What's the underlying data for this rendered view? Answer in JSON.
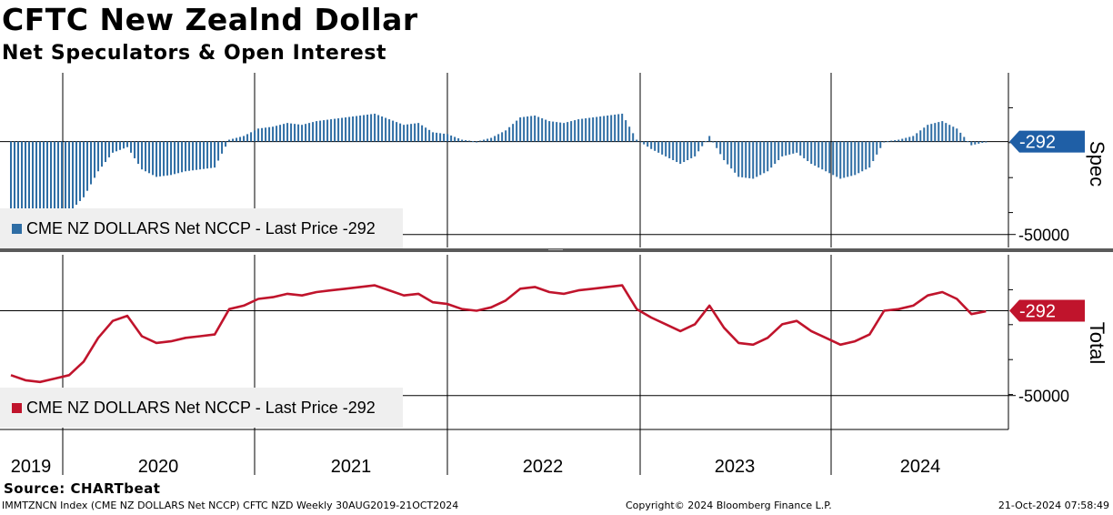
{
  "header": {
    "title": "CFTC New Zealnd Dollar",
    "subtitle": "Net Speculators & Open Interest"
  },
  "source": "Source: CHARTbeat",
  "footer": {
    "left": "IMMTZNCN Index (CME NZ DOLLARS Net NCCP) CFTC NZD  Weekly 30AUG2019-21OCT2024",
    "middle": "Copyright© 2024 Bloomberg Finance L.P.",
    "right": "21-Oct-2024 07:58:49"
  },
  "colors": {
    "spec_bar": "#2e6da4",
    "total_line": "#c0142c",
    "spec_tag": "#1f5fa6",
    "total_tag": "#c0142c",
    "legend_bg": "#efefef",
    "divider": "#5a5a5a"
  },
  "chart_data": [
    {
      "type": "bar",
      "panel": "Spec",
      "legend": "CME NZ DOLLARS Net NCCP - Last Price -292",
      "last_value_label": "-292",
      "yticks": [
        -50000
      ],
      "ytick_labels": [
        "-50000"
      ],
      "ylim": [
        -57000,
        37000
      ],
      "x_labels": [
        "2019",
        "2020",
        "2021",
        "2022",
        "2023",
        "2024"
      ],
      "x": [
        "2019-08-30",
        "2019-09-27",
        "2019-10-25",
        "2019-11-22",
        "2019-12-20",
        "2020-01-17",
        "2020-02-14",
        "2020-03-13",
        "2020-04-10",
        "2020-05-08",
        "2020-06-05",
        "2020-07-03",
        "2020-07-31",
        "2020-08-28",
        "2020-09-25",
        "2020-10-23",
        "2020-11-20",
        "2020-12-18",
        "2021-01-15",
        "2021-02-12",
        "2021-03-12",
        "2021-04-09",
        "2021-05-07",
        "2021-06-04",
        "2021-07-02",
        "2021-07-30",
        "2021-08-27",
        "2021-09-24",
        "2021-10-22",
        "2021-11-19",
        "2021-12-17",
        "2022-01-14",
        "2022-02-11",
        "2022-03-11",
        "2022-04-08",
        "2022-05-06",
        "2022-06-03",
        "2022-07-01",
        "2022-07-29",
        "2022-08-26",
        "2022-09-23",
        "2022-10-21",
        "2022-11-18",
        "2022-12-16",
        "2023-01-13",
        "2023-02-10",
        "2023-03-10",
        "2023-04-07",
        "2023-05-05",
        "2023-06-02",
        "2023-06-30",
        "2023-07-28",
        "2023-08-25",
        "2023-09-22",
        "2023-10-20",
        "2023-11-17",
        "2023-12-15",
        "2024-01-12",
        "2024-02-09",
        "2024-03-08",
        "2024-04-05",
        "2024-05-03",
        "2024-05-31",
        "2024-06-28",
        "2024-07-26",
        "2024-08-23",
        "2024-09-20",
        "2024-10-18"
      ],
      "values": [
        -38000,
        -41000,
        -42000,
        -40000,
        -38000,
        -30000,
        -16000,
        -6000,
        -3000,
        -15000,
        -19000,
        -18000,
        -16000,
        -15000,
        -14000,
        1000,
        3000,
        7000,
        8000,
        10000,
        9000,
        11000,
        12000,
        13000,
        14000,
        15000,
        12000,
        9000,
        10000,
        5000,
        4000,
        1000,
        0,
        2000,
        6000,
        13000,
        14000,
        11000,
        10000,
        12000,
        13000,
        14000,
        15000,
        1000,
        -4000,
        -8000,
        -12000,
        -8000,
        3000,
        -10000,
        -19000,
        -20000,
        -16000,
        -8000,
        -6000,
        -12000,
        -16000,
        -20000,
        -18000,
        -14000,
        0,
        1000,
        3000,
        9000,
        11000,
        7000,
        -2000,
        -292
      ],
      "bar_color": "#2e6da4"
    },
    {
      "type": "line",
      "panel": "Total",
      "legend": "CME NZ DOLLARS Net NCCP - Last Price -292",
      "last_value_label": "-292",
      "yticks": [
        -50000
      ],
      "ytick_labels": [
        "-50000"
      ],
      "ylim": [
        -70000,
        33000
      ],
      "x_labels": [
        "2019",
        "2020",
        "2021",
        "2022",
        "2023",
        "2024"
      ],
      "x": [
        "2019-08-30",
        "2019-09-27",
        "2019-10-25",
        "2019-11-22",
        "2019-12-20",
        "2020-01-17",
        "2020-02-14",
        "2020-03-13",
        "2020-04-10",
        "2020-05-08",
        "2020-06-05",
        "2020-07-03",
        "2020-07-31",
        "2020-08-28",
        "2020-09-25",
        "2020-10-23",
        "2020-11-20",
        "2020-12-18",
        "2021-01-15",
        "2021-02-12",
        "2021-03-12",
        "2021-04-09",
        "2021-05-07",
        "2021-06-04",
        "2021-07-02",
        "2021-07-30",
        "2021-08-27",
        "2021-09-24",
        "2021-10-22",
        "2021-11-19",
        "2021-12-17",
        "2022-01-14",
        "2022-02-11",
        "2022-03-11",
        "2022-04-08",
        "2022-05-06",
        "2022-06-03",
        "2022-07-01",
        "2022-07-29",
        "2022-08-26",
        "2022-09-23",
        "2022-10-21",
        "2022-11-18",
        "2022-12-16",
        "2023-01-13",
        "2023-02-10",
        "2023-03-10",
        "2023-04-07",
        "2023-05-05",
        "2023-06-02",
        "2023-06-30",
        "2023-07-28",
        "2023-08-25",
        "2023-09-22",
        "2023-10-20",
        "2023-11-17",
        "2023-12-15",
        "2024-01-12",
        "2024-02-09",
        "2024-03-08",
        "2024-04-05",
        "2024-05-03",
        "2024-05-31",
        "2024-06-28",
        "2024-07-26",
        "2024-08-23",
        "2024-09-20",
        "2024-10-18"
      ],
      "values": [
        -38000,
        -41000,
        -42000,
        -40000,
        -38000,
        -30000,
        -16000,
        -6000,
        -3000,
        -15000,
        -19000,
        -18000,
        -16000,
        -15000,
        -14000,
        1000,
        3000,
        7000,
        8000,
        10000,
        9000,
        11000,
        12000,
        13000,
        14000,
        15000,
        12000,
        9000,
        10000,
        5000,
        4000,
        1000,
        0,
        2000,
        6000,
        13000,
        14000,
        11000,
        10000,
        12000,
        13000,
        14000,
        15000,
        1000,
        -4000,
        -8000,
        -12000,
        -8000,
        3000,
        -10000,
        -19000,
        -20000,
        -16000,
        -8000,
        -6000,
        -12000,
        -16000,
        -20000,
        -18000,
        -14000,
        0,
        1000,
        3000,
        9000,
        11000,
        7000,
        -2000,
        -292
      ],
      "line_color": "#c0142c"
    }
  ],
  "side_labels": {
    "top": "Spec",
    "bottom": "Total"
  }
}
